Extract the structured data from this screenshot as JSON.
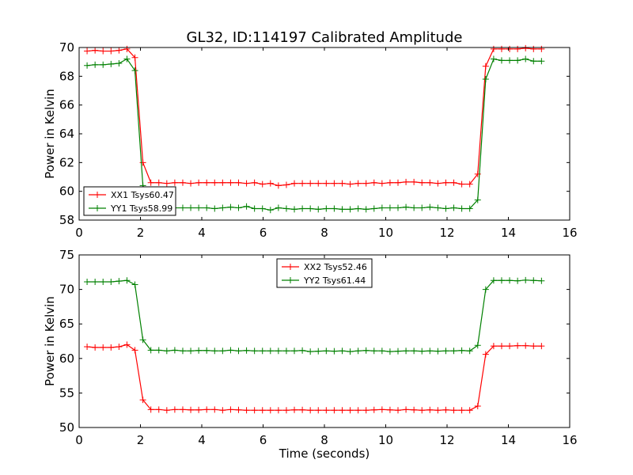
{
  "title": "GL32, ID:114197 Calibrated Amplitude",
  "colors": {
    "xx": "#ff0000",
    "yy": "#008000"
  },
  "chart_data": [
    {
      "type": "line",
      "title": "GL32, ID:114197 Calibrated Amplitude",
      "xlabel": "",
      "ylabel": "Power in Kelvin",
      "xlim": [
        0,
        16
      ],
      "ylim": [
        58,
        70
      ],
      "xticks": [
        0,
        2,
        4,
        6,
        8,
        10,
        12,
        14,
        16
      ],
      "yticks": [
        58,
        60,
        62,
        64,
        66,
        68,
        70
      ],
      "grid": false,
      "legend": "lower-left",
      "x": [
        0.26,
        0.52,
        0.78,
        1.04,
        1.3,
        1.56,
        1.82,
        2.08,
        2.34,
        2.6,
        2.86,
        3.12,
        3.38,
        3.64,
        3.9,
        4.16,
        4.42,
        4.68,
        4.94,
        5.2,
        5.46,
        5.72,
        5.98,
        6.24,
        6.5,
        6.76,
        7.02,
        7.28,
        7.54,
        7.8,
        8.06,
        8.32,
        8.58,
        8.84,
        9.1,
        9.36,
        9.62,
        9.88,
        10.14,
        10.4,
        10.66,
        10.92,
        11.18,
        11.44,
        11.7,
        11.96,
        12.22,
        12.48,
        12.74,
        13.0,
        13.26,
        13.52,
        13.78,
        14.04,
        14.3,
        14.56,
        14.82,
        15.08
      ],
      "series": [
        {
          "name": "XX1 Tsys60.47",
          "color": "#ff0000",
          "values": [
            69.75,
            69.8,
            69.75,
            69.75,
            69.8,
            69.9,
            69.3,
            62.0,
            60.6,
            60.6,
            60.55,
            60.6,
            60.6,
            60.55,
            60.6,
            60.6,
            60.6,
            60.6,
            60.6,
            60.6,
            60.55,
            60.6,
            60.5,
            60.55,
            60.4,
            60.45,
            60.55,
            60.55,
            60.55,
            60.55,
            60.55,
            60.55,
            60.55,
            60.5,
            60.55,
            60.55,
            60.6,
            60.55,
            60.6,
            60.6,
            60.65,
            60.65,
            60.6,
            60.6,
            60.55,
            60.6,
            60.6,
            60.5,
            60.5,
            61.2,
            68.7,
            69.9,
            69.9,
            69.9,
            69.9,
            69.95,
            69.9,
            69.9
          ]
        },
        {
          "name": "YY1 Tsys58.99",
          "color": "#008000",
          "values": [
            68.75,
            68.8,
            68.8,
            68.85,
            68.9,
            69.2,
            68.4,
            60.4,
            58.85,
            58.85,
            58.8,
            58.85,
            58.85,
            58.85,
            58.85,
            58.85,
            58.8,
            58.85,
            58.9,
            58.85,
            58.95,
            58.8,
            58.8,
            58.7,
            58.85,
            58.8,
            58.75,
            58.8,
            58.8,
            58.75,
            58.8,
            58.8,
            58.75,
            58.75,
            58.8,
            58.75,
            58.8,
            58.85,
            58.85,
            58.85,
            58.9,
            58.85,
            58.85,
            58.9,
            58.85,
            58.8,
            58.85,
            58.8,
            58.8,
            59.4,
            67.8,
            69.2,
            69.1,
            69.1,
            69.1,
            69.2,
            69.05,
            69.05
          ]
        }
      ]
    },
    {
      "type": "line",
      "title": "",
      "xlabel": "Time (seconds)",
      "ylabel": "Power in Kelvin",
      "xlim": [
        0,
        16
      ],
      "ylim": [
        50,
        75
      ],
      "xticks": [
        0,
        2,
        4,
        6,
        8,
        10,
        12,
        14,
        16
      ],
      "yticks": [
        50,
        55,
        60,
        65,
        70,
        75
      ],
      "grid": false,
      "legend": "upper-center",
      "x": [
        0.26,
        0.52,
        0.78,
        1.04,
        1.3,
        1.56,
        1.82,
        2.08,
        2.34,
        2.6,
        2.86,
        3.12,
        3.38,
        3.64,
        3.9,
        4.16,
        4.42,
        4.68,
        4.94,
        5.2,
        5.46,
        5.72,
        5.98,
        6.24,
        6.5,
        6.76,
        7.02,
        7.28,
        7.54,
        7.8,
        8.06,
        8.32,
        8.58,
        8.84,
        9.1,
        9.36,
        9.62,
        9.88,
        10.14,
        10.4,
        10.66,
        10.92,
        11.18,
        11.44,
        11.7,
        11.96,
        12.22,
        12.48,
        12.74,
        13.0,
        13.26,
        13.52,
        13.78,
        14.04,
        14.3,
        14.56,
        14.82,
        15.08
      ],
      "series": [
        {
          "name": "XX2 Tsys52.46",
          "color": "#ff0000",
          "values": [
            61.7,
            61.6,
            61.6,
            61.6,
            61.7,
            62.0,
            61.2,
            54.0,
            52.6,
            52.6,
            52.5,
            52.6,
            52.6,
            52.55,
            52.55,
            52.6,
            52.6,
            52.5,
            52.6,
            52.55,
            52.5,
            52.5,
            52.5,
            52.5,
            52.5,
            52.5,
            52.55,
            52.55,
            52.5,
            52.5,
            52.5,
            52.5,
            52.5,
            52.5,
            52.5,
            52.5,
            52.55,
            52.6,
            52.55,
            52.5,
            52.6,
            52.55,
            52.5,
            52.55,
            52.5,
            52.55,
            52.5,
            52.5,
            52.5,
            53.1,
            60.6,
            61.8,
            61.8,
            61.8,
            61.85,
            61.85,
            61.8,
            61.8
          ]
        },
        {
          "name": "YY2 Tsys61.44",
          "color": "#008000",
          "values": [
            71.1,
            71.1,
            71.1,
            71.1,
            71.2,
            71.3,
            70.7,
            62.7,
            61.2,
            61.2,
            61.1,
            61.2,
            61.1,
            61.1,
            61.15,
            61.15,
            61.1,
            61.1,
            61.2,
            61.1,
            61.15,
            61.1,
            61.1,
            61.1,
            61.1,
            61.1,
            61.1,
            61.15,
            61.0,
            61.05,
            61.1,
            61.05,
            61.1,
            61.0,
            61.1,
            61.15,
            61.1,
            61.1,
            61.0,
            61.05,
            61.1,
            61.1,
            61.05,
            61.1,
            61.05,
            61.1,
            61.1,
            61.15,
            61.1,
            61.9,
            70.0,
            71.3,
            71.3,
            71.3,
            71.25,
            71.35,
            71.3,
            71.25
          ]
        }
      ]
    }
  ]
}
